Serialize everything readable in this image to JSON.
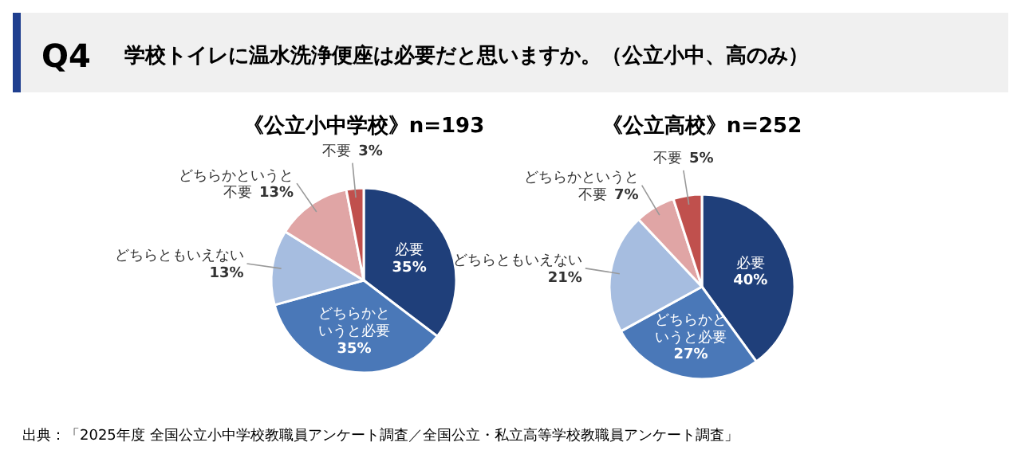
{
  "chart_data": [
    {
      "type": "other",
      "title": "Q4",
      "subtitle": "学校トイレに温水洗浄便座は必要だと思いますか。（公立小中、高のみ）",
      "annotations": [
        "出典：「2025年度  全国公立小中学校教職員アンケート調査／全国公立・私立高等学校教職員アンケート調査」"
      ]
    },
    {
      "type": "pie",
      "title": "《公立小中学校》n=193",
      "categories": [
        "必要",
        "どちらかというと必要",
        "どちらともいえない",
        "どちらかというと不要",
        "不要"
      ],
      "values": [
        35,
        35,
        13,
        13,
        3
      ],
      "value_labels": [
        "35%",
        "35%",
        "13%",
        "13%",
        "3%"
      ],
      "colors": [
        "#1f3f7a",
        "#4a78b8",
        "#a6bde0",
        "#e0a5a5",
        "#c0504d"
      ]
    },
    {
      "type": "pie",
      "title": "《公立高校》n=252",
      "categories": [
        "必要",
        "どちらかというと必要",
        "どちらともいえない",
        "どちらかというと不要",
        "不要"
      ],
      "values": [
        40,
        27,
        21,
        7,
        5
      ],
      "value_labels": [
        "40%",
        "27%",
        "21%",
        "7%",
        "5%"
      ],
      "colors": [
        "#1f3f7a",
        "#4a78b8",
        "#a6bde0",
        "#e0a5a5",
        "#c0504d"
      ]
    }
  ]
}
